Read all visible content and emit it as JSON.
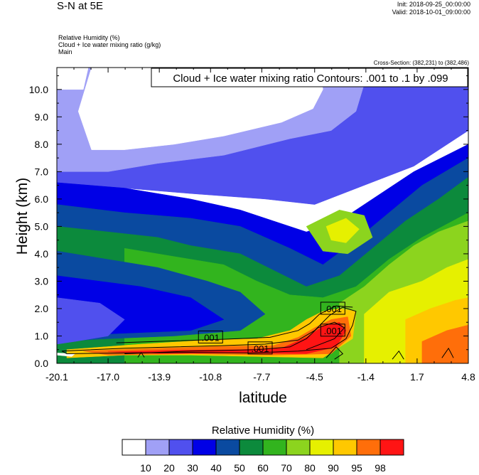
{
  "header": {
    "title": "S-N at 5E",
    "init": "Init: 2018-09-25_00:00:00",
    "valid": "Valid: 2018-10-01_09:00:00",
    "var1": "Relative Humidity   (%)",
    "var2": "Cloud + Ice water mixing ratio   (g/kg)",
    "var3": "Main",
    "cross_section": "Cross-Section: (382,231) to (382,486)"
  },
  "chart_data": {
    "type": "heatmap",
    "title": "Cloud + Ice water mixing ratio Contours: .001 to .1 by .099",
    "xlabel": "latitude",
    "ylabel": "Height (km)",
    "xlim": [
      -20.1,
      4.8
    ],
    "ylim": [
      0.0,
      10.8
    ],
    "x_ticks": [
      "-20.1",
      "-17.0",
      "-13.9",
      "-10.8",
      "-7.7",
      "-4.5",
      "-1.4",
      "1.7",
      "4.8"
    ],
    "x_tick_values": [
      -20.1,
      -17.0,
      -13.9,
      -10.8,
      -7.7,
      -4.5,
      -1.4,
      1.7,
      4.8
    ],
    "y_ticks": [
      "0.0",
      "1.0",
      "2.0",
      "3.0",
      "4.0",
      "5.0",
      "6.0",
      "7.0",
      "8.0",
      "9.0",
      "10.0"
    ],
    "y_tick_values": [
      0,
      1,
      2,
      3,
      4,
      5,
      6,
      7,
      8,
      9,
      10
    ],
    "contour_labels": [
      {
        "text": ".001",
        "x": -10.8,
        "y": 0.95
      },
      {
        "text": ".001",
        "x": -7.8,
        "y": 0.55
      },
      {
        "text": ".001",
        "x": -3.4,
        "y": 2.0
      },
      {
        "text": ".001",
        "x": -3.4,
        "y": 1.2
      }
    ],
    "colorbar": {
      "title": "Relative Humidity  (%)",
      "levels": [
        "10",
        "20",
        "30",
        "40",
        "50",
        "60",
        "70",
        "80",
        "90",
        "95",
        "98"
      ],
      "colors": [
        "#ffffff",
        "#a0a0f6",
        "#5050ee",
        "#0000e6",
        "#0a4aa0",
        "#0c8a3c",
        "#32b41e",
        "#8cd41e",
        "#e6f000",
        "#ffc800",
        "#ff6e0a",
        "#ff1414"
      ]
    },
    "regions": [
      {
        "level": 2,
        "poly": [
          [
            -20.1,
            10.8
          ],
          [
            4.8,
            10.8
          ],
          [
            4.8,
            8.5
          ],
          [
            1.5,
            7.2
          ],
          [
            -1.5,
            6.5
          ],
          [
            -4.5,
            5.8
          ],
          [
            -7.5,
            6.0
          ],
          [
            -12,
            6.2
          ],
          [
            -16,
            6.4
          ],
          [
            -20.1,
            6.6
          ]
        ]
      },
      {
        "level": 1,
        "poly": [
          [
            -20.1,
            10.8
          ],
          [
            -1.2,
            10.8
          ],
          [
            -2.0,
            9.2
          ],
          [
            -3.5,
            8.5
          ],
          [
            -6,
            8.2
          ],
          [
            -10,
            7.6
          ],
          [
            -14,
            7.3
          ],
          [
            -17,
            7.0
          ],
          [
            -20.1,
            7.0
          ]
        ]
      },
      {
        "level": 0,
        "poly": [
          [
            -18,
            10.8
          ],
          [
            -4.2,
            10.8
          ],
          [
            -4.0,
            10.0
          ],
          [
            -4.6,
            9.3
          ],
          [
            -6.5,
            8.8
          ],
          [
            -10,
            8.3
          ],
          [
            -13,
            8.0
          ],
          [
            -16,
            7.8
          ],
          [
            -18,
            7.8
          ],
          [
            -18.8,
            9.2
          ]
        ]
      },
      {
        "level": 0,
        "poly": [
          [
            -20.1,
            10.8
          ],
          [
            -18.2,
            10.8
          ],
          [
            -18.5,
            10.0
          ],
          [
            -20.1,
            10.0
          ]
        ]
      },
      {
        "level": 1,
        "poly": [
          [
            -17.0,
            6.4
          ],
          [
            -16.2,
            6.2
          ],
          [
            -15.8,
            5.6
          ],
          [
            -16.5,
            5.1
          ],
          [
            -17.3,
            5.4
          ],
          [
            -17.6,
            6.0
          ]
        ]
      },
      {
        "level": 3,
        "poly": [
          [
            -20.1,
            6.6
          ],
          [
            -16,
            6.4
          ],
          [
            -12,
            6.0
          ],
          [
            -9,
            5.6
          ],
          [
            -7,
            5.2
          ],
          [
            -5,
            4.8
          ],
          [
            -3,
            5.2
          ],
          [
            -1,
            6.0
          ],
          [
            1.5,
            7.0
          ],
          [
            4.8,
            8.0
          ],
          [
            4.8,
            0
          ],
          [
            -20.1,
            0
          ]
        ]
      },
      {
        "level": 4,
        "poly": [
          [
            -20.1,
            5.8
          ],
          [
            -16,
            5.5
          ],
          [
            -12,
            5.3
          ],
          [
            -9,
            5.0
          ],
          [
            -6,
            4.2
          ],
          [
            -4,
            3.6
          ],
          [
            -2,
            4.5
          ],
          [
            0,
            5.5
          ],
          [
            2,
            6.5
          ],
          [
            4.8,
            7.5
          ],
          [
            4.8,
            0
          ],
          [
            -20.1,
            0
          ]
        ]
      },
      {
        "level": 5,
        "poly": [
          [
            -20.1,
            5.0
          ],
          [
            -17,
            4.8
          ],
          [
            -14,
            4.6
          ],
          [
            -12,
            4.3
          ],
          [
            -9,
            4.0
          ],
          [
            -7,
            3.4
          ],
          [
            -5,
            2.8
          ],
          [
            -3,
            3.2
          ],
          [
            -1,
            4.2
          ],
          [
            1,
            5.2
          ],
          [
            3,
            6.0
          ],
          [
            4.8,
            6.8
          ],
          [
            4.8,
            0
          ],
          [
            -20.1,
            0
          ]
        ]
      },
      {
        "level": 6,
        "poly": [
          [
            -16,
            4.2
          ],
          [
            -13,
            3.9
          ],
          [
            -10,
            3.6
          ],
          [
            -8,
            3.0
          ],
          [
            -6,
            2.5
          ],
          [
            -4,
            2.4
          ],
          [
            -2,
            2.8
          ],
          [
            0,
            3.8
          ],
          [
            2,
            4.6
          ],
          [
            4.8,
            5.5
          ],
          [
            4.8,
            0
          ],
          [
            -16,
            0
          ]
        ]
      },
      {
        "level": 4,
        "poly": [
          [
            -20.1,
            4.1
          ],
          [
            -14,
            3.5
          ],
          [
            -11,
            3.0
          ],
          [
            -9,
            2.6
          ],
          [
            -7.5,
            1.8
          ],
          [
            -9,
            1.2
          ],
          [
            -13,
            1.0
          ],
          [
            -17,
            0.9
          ],
          [
            -20.1,
            0.8
          ]
        ]
      },
      {
        "level": 3,
        "poly": [
          [
            -20.1,
            3.2
          ],
          [
            -15,
            2.8
          ],
          [
            -12,
            2.4
          ],
          [
            -10,
            1.6
          ],
          [
            -12,
            1.2
          ],
          [
            -16,
            1.1
          ],
          [
            -20.1,
            1.0
          ]
        ]
      },
      {
        "level": 2,
        "poly": [
          [
            -20.1,
            2.4
          ],
          [
            -17.5,
            2.2
          ],
          [
            -16.0,
            1.6
          ],
          [
            -17.0,
            1.0
          ],
          [
            -19,
            0.8
          ],
          [
            -20.1,
            0.7
          ]
        ]
      },
      {
        "level": 7,
        "poly": [
          [
            -3,
            2.2
          ],
          [
            -1.5,
            2.8
          ],
          [
            0,
            3.6
          ],
          [
            1.5,
            4.3
          ],
          [
            3,
            4.8
          ],
          [
            4.8,
            5.2
          ],
          [
            4.8,
            0
          ],
          [
            -3,
            0
          ]
        ]
      },
      {
        "level": 8,
        "poly": [
          [
            -1.5,
            1.8
          ],
          [
            0,
            2.6
          ],
          [
            2,
            3.0
          ],
          [
            3.5,
            3.5
          ],
          [
            4.8,
            3.8
          ],
          [
            4.8,
            0
          ],
          [
            -1.5,
            0
          ]
        ]
      },
      {
        "level": 7,
        "poly": [
          [
            -5,
            5.0
          ],
          [
            -3,
            5.6
          ],
          [
            -1.5,
            5.4
          ],
          [
            -1,
            4.6
          ],
          [
            -2.5,
            4.0
          ],
          [
            -4,
            4.1
          ]
        ]
      },
      {
        "level": 8,
        "poly": [
          [
            -3.8,
            5.0
          ],
          [
            -2.6,
            5.3
          ],
          [
            -1.8,
            4.9
          ],
          [
            -2.6,
            4.4
          ],
          [
            -3.5,
            4.5
          ]
        ]
      },
      {
        "level": 9,
        "poly": [
          [
            1.0,
            1.6
          ],
          [
            2.5,
            2.0
          ],
          [
            4.0,
            2.3
          ],
          [
            4.8,
            2.4
          ],
          [
            4.8,
            0
          ],
          [
            1.0,
            0
          ]
        ]
      },
      {
        "level": 10,
        "poly": [
          [
            2.0,
            0.8
          ],
          [
            3.5,
            1.2
          ],
          [
            4.8,
            1.4
          ],
          [
            4.8,
            0
          ],
          [
            2.0,
            0
          ]
        ]
      },
      {
        "level": 9,
        "poly": [
          [
            -19.5,
            0.5
          ],
          [
            -15,
            0.7
          ],
          [
            -11,
            0.85
          ],
          [
            -8,
            0.9
          ],
          [
            -6,
            1.2
          ],
          [
            -5,
            1.6
          ],
          [
            -4,
            1.9
          ],
          [
            -3,
            2.0
          ],
          [
            -2,
            1.9
          ],
          [
            -2.2,
            0.9
          ],
          [
            -4,
            0.2
          ],
          [
            -8,
            0.25
          ],
          [
            -12,
            0.3
          ],
          [
            -16,
            0.3
          ],
          [
            -19.5,
            0.2
          ]
        ]
      },
      {
        "level": 10,
        "poly": [
          [
            -18.5,
            0.45
          ],
          [
            -14,
            0.55
          ],
          [
            -10,
            0.62
          ],
          [
            -7,
            0.65
          ],
          [
            -5.5,
            0.95
          ],
          [
            -4.5,
            1.3
          ],
          [
            -3.5,
            1.6
          ],
          [
            -2.5,
            1.7
          ],
          [
            -2.3,
            1.0
          ],
          [
            -3.5,
            0.35
          ],
          [
            -7,
            0.3
          ],
          [
            -12,
            0.35
          ],
          [
            -17,
            0.3
          ]
        ]
      },
      {
        "level": 11,
        "poly": [
          [
            -17,
            0.42
          ],
          [
            -13,
            0.48
          ],
          [
            -9,
            0.5
          ],
          [
            -6.5,
            0.55
          ],
          [
            -5,
            0.95
          ],
          [
            -4,
            1.35
          ],
          [
            -3,
            1.5
          ],
          [
            -2.6,
            1.2
          ],
          [
            -3.2,
            0.6
          ],
          [
            -5,
            0.35
          ],
          [
            -9,
            0.38
          ],
          [
            -14,
            0.36
          ]
        ]
      },
      {
        "level": 0,
        "poly": [
          [
            -20.1,
            0.3
          ],
          [
            -19.2,
            0.25
          ],
          [
            -19.0,
            0.35
          ],
          [
            -20.1,
            0.38
          ]
        ]
      }
    ],
    "contours": [
      [
        [
          -19.8,
          0.45
        ],
        [
          -16,
          0.55
        ],
        [
          -13,
          0.6
        ],
        [
          -10,
          0.65
        ],
        [
          -7.5,
          0.7
        ],
        [
          -5.5,
          0.85
        ],
        [
          -4.5,
          1.2
        ],
        [
          -3.6,
          1.75
        ],
        [
          -2.8,
          2.05
        ],
        [
          -2.0,
          1.9
        ],
        [
          -2.2,
          1.4
        ],
        [
          -2.6,
          0.9
        ],
        [
          -3.5,
          0.55
        ],
        [
          -5.5,
          0.45
        ],
        [
          -8.5,
          0.38
        ],
        [
          -12,
          0.4
        ],
        [
          -16,
          0.38
        ],
        [
          -19.5,
          0.35
        ],
        [
          -19.8,
          0.45
        ]
      ],
      [
        [
          -16.5,
          0.75
        ],
        [
          -13,
          0.82
        ],
        [
          -10,
          0.88
        ],
        [
          -7.2,
          0.95
        ],
        [
          -5.5,
          1.2
        ],
        [
          -4.8,
          1.45
        ],
        [
          -4.2,
          1.8
        ],
        [
          -3.2,
          2.1
        ],
        [
          -2.2,
          2.05
        ]
      ],
      [
        [
          -16,
          0.35
        ],
        [
          -12,
          0.45
        ],
        [
          -8,
          0.5
        ],
        [
          -6,
          0.6
        ],
        [
          -5,
          0.9
        ],
        [
          -4.3,
          1.3
        ],
        [
          -3.3,
          1.5
        ],
        [
          -2.7,
          1.3
        ],
        [
          -3.3,
          0.9
        ],
        [
          -5,
          0.5
        ]
      ],
      [
        [
          -15.2,
          0.22
        ],
        [
          -15.0,
          0.4
        ],
        [
          -14.8,
          0.22
        ]
      ],
      [
        [
          -3.8,
          0.2
        ],
        [
          -3.2,
          0.6
        ],
        [
          -2.8,
          0.35
        ],
        [
          -3.3,
          0.15
        ]
      ],
      [
        [
          0.2,
          0.15
        ],
        [
          0.6,
          0.45
        ],
        [
          0.9,
          0.15
        ]
      ],
      [
        [
          3.2,
          0.2
        ],
        [
          3.6,
          0.55
        ],
        [
          3.9,
          0.2
        ]
      ]
    ]
  }
}
